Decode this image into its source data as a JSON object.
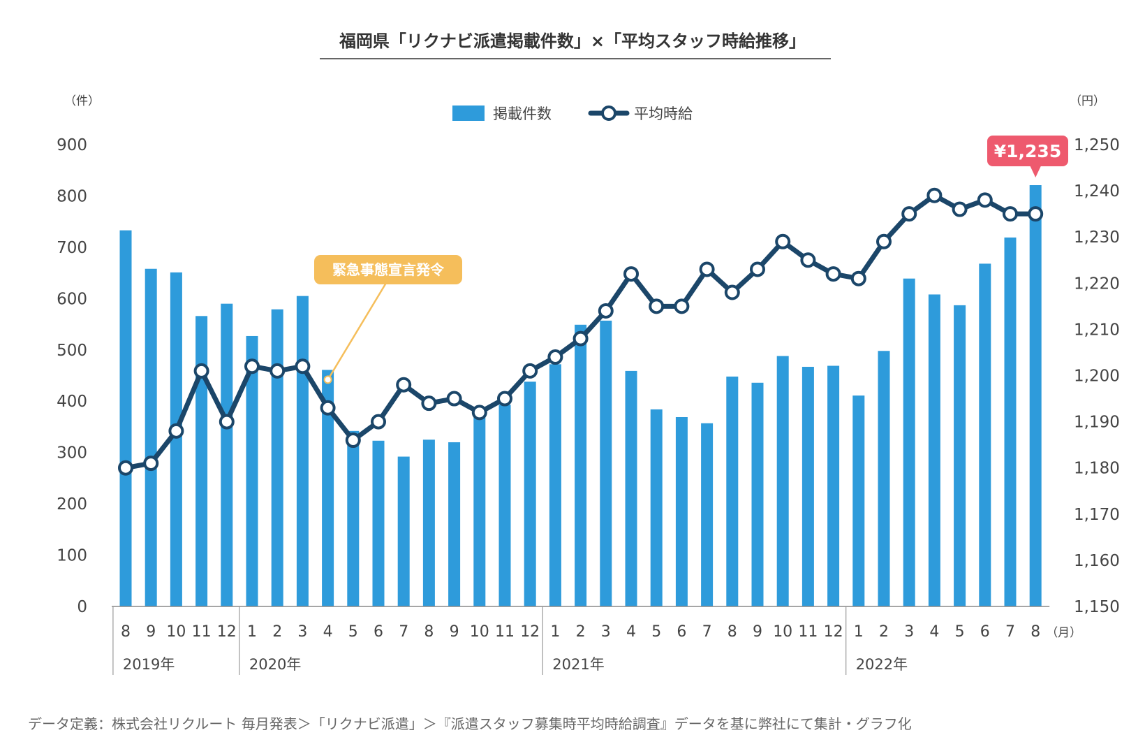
{
  "chart_data": {
    "type": "bar-line-combo",
    "title": "福岡県「リクナビ派遣掲載件数」×「平均スタッフ時給推移」",
    "left_axis": {
      "unit": "（件）",
      "ylim": [
        0,
        900
      ],
      "ticks": [
        0,
        100,
        200,
        300,
        400,
        500,
        600,
        700,
        800,
        900
      ]
    },
    "right_axis": {
      "unit": "（円）",
      "ylim": [
        1150,
        1250
      ],
      "ticks": [
        1150,
        1160,
        1170,
        1180,
        1190,
        1200,
        1210,
        1220,
        1230,
        1240,
        1250
      ],
      "tick_labels": [
        "1,150",
        "1,160",
        "1,170",
        "1,180",
        "1,190",
        "1,200",
        "1,210",
        "1,220",
        "1,230",
        "1,240",
        "1,250"
      ]
    },
    "x_unit": "（月）",
    "categories": [
      "8",
      "9",
      "10",
      "11",
      "12",
      "1",
      "2",
      "3",
      "4",
      "5",
      "6",
      "7",
      "8",
      "9",
      "10",
      "11",
      "12",
      "1",
      "2",
      "3",
      "4",
      "5",
      "6",
      "7",
      "8",
      "9",
      "10",
      "11",
      "12",
      "1",
      "2",
      "3",
      "4",
      "5",
      "6",
      "7",
      "8"
    ],
    "years": [
      {
        "label": "2019年",
        "start_index": 0
      },
      {
        "label": "2020年",
        "start_index": 5
      },
      {
        "label": "2021年",
        "start_index": 17
      },
      {
        "label": "2022年",
        "start_index": 29
      }
    ],
    "series": [
      {
        "name": "掲載件数",
        "type": "bar",
        "axis": "left",
        "color": "#2E9BDB",
        "values": [
          733,
          658,
          651,
          566,
          590,
          527,
          579,
          605,
          461,
          342,
          323,
          292,
          325,
          320,
          386,
          393,
          438,
          472,
          549,
          557,
          459,
          384,
          369,
          357,
          448,
          436,
          488,
          467,
          469,
          411,
          498,
          639,
          608,
          587,
          668,
          719,
          821
        ]
      },
      {
        "name": "平均時給",
        "type": "line",
        "axis": "right",
        "color": "#1B4669",
        "values": [
          1180,
          1181,
          1188,
          1201,
          1190,
          1202,
          1201,
          1202,
          1193,
          1186,
          1190,
          1198,
          1194,
          1195,
          1192,
          1195,
          1201,
          1204,
          1208,
          1214,
          1222,
          1215,
          1215,
          1223,
          1218,
          1223,
          1229,
          1225,
          1222,
          1221,
          1229,
          1235,
          1239,
          1236,
          1238,
          1235,
          1235
        ]
      }
    ],
    "annotations": [
      {
        "text": "緊急事態宣言発令",
        "index": 8,
        "color": "#F5BE5B"
      },
      {
        "text": "¥1,235",
        "index": 36,
        "color": "#EE5A6E"
      }
    ],
    "legend_position": "top-center",
    "grid": false,
    "footnote": "データ定義：株式会社リクルート 毎月発表＞「リクナビ派遣」＞『派遣スタッフ募集時平均時給調査』データを基に弊社にて集計・グラフ化"
  }
}
